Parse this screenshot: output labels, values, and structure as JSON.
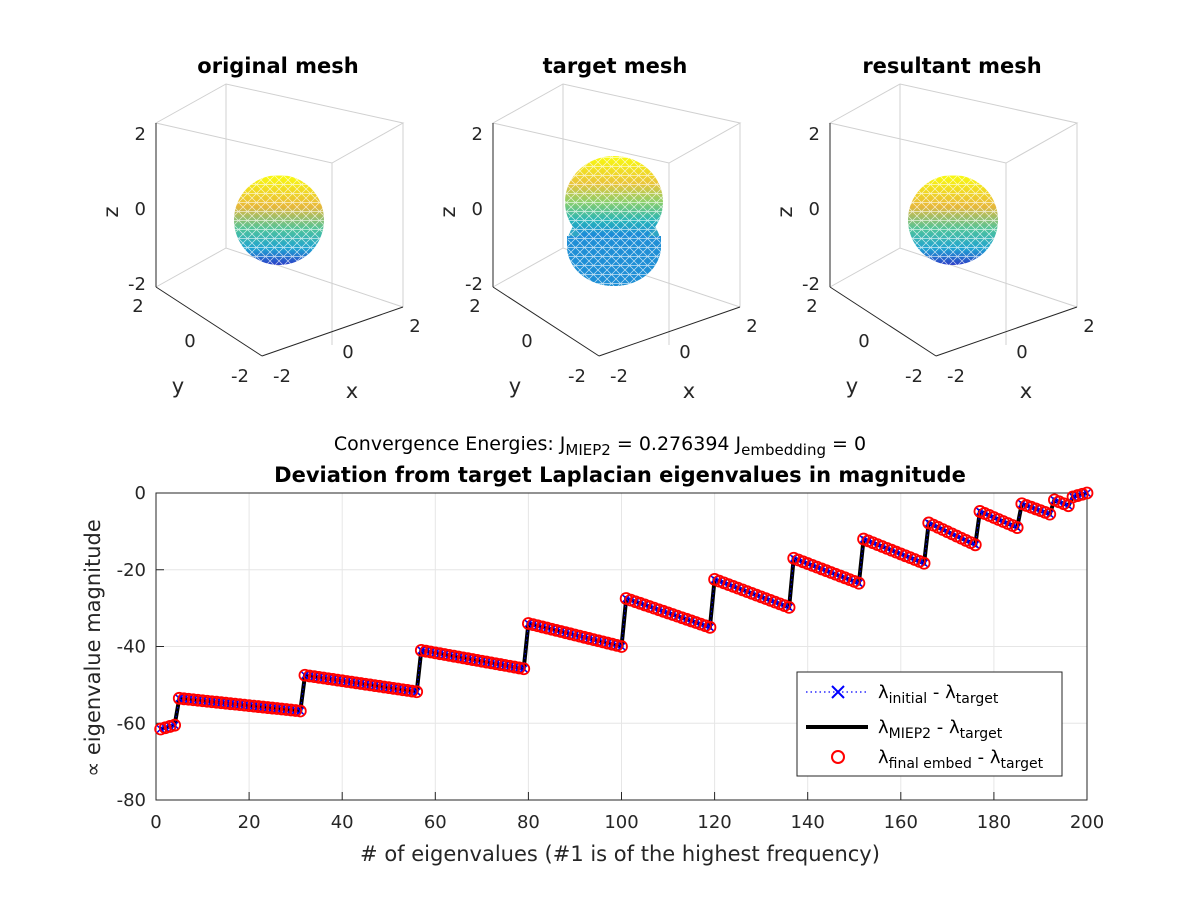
{
  "meshes": [
    {
      "title": "original mesh",
      "xlabel": "x",
      "ylabel": "y",
      "zlabel": "z",
      "ticks": [
        "-2",
        "0",
        "2"
      ],
      "shape": "sphere"
    },
    {
      "title": "target mesh",
      "xlabel": "x",
      "ylabel": "y",
      "zlabel": "z",
      "ticks": [
        "-2",
        "0",
        "2"
      ],
      "shape": "double-sphere"
    },
    {
      "title": "resultant mesh",
      "xlabel": "x",
      "ylabel": "y",
      "zlabel": "z",
      "ticks": [
        "-2",
        "0",
        "2"
      ],
      "shape": "sphere"
    }
  ],
  "chart_data": {
    "type": "line",
    "supertitle_prefix": "Convergence Energies: J",
    "supertitle_sub1": "MIEP2",
    "supertitle_mid": " = 0.276394     J",
    "supertitle_sub2": "embedding",
    "supertitle_end": " = 0",
    "title": "Deviation from target Laplacian eigenvalues in magnitude",
    "xlabel": "# of eigenvalues (#1 is of the highest frequency)",
    "ylabel": "∝ eigenvalue magnitude",
    "xlim": [
      0,
      200
    ],
    "ylim": [
      -80,
      0
    ],
    "xticks": [
      "0",
      "20",
      "40",
      "60",
      "80",
      "100",
      "120",
      "140",
      "160",
      "180",
      "200"
    ],
    "yticks": [
      "0",
      "-20",
      "-40",
      "-60",
      "-80"
    ],
    "grid": true,
    "legend_position": "bottom-right",
    "legend": [
      {
        "lambda": "λ",
        "sub": "initial",
        "sep": " - λ",
        "sub2": "target",
        "style": "blue dotted x"
      },
      {
        "lambda": "λ",
        "sub": "MIEP2",
        "sep": " - λ",
        "sub2": "target",
        "style": "black solid line"
      },
      {
        "lambda": "λ",
        "sub": "final embed",
        "sep": " - λ",
        "sub2": "target",
        "style": "red circle"
      }
    ],
    "segments": [
      {
        "x0": 1,
        "x1": 4,
        "y0": -61.5,
        "y1": -60.5
      },
      {
        "x0": 5,
        "x1": 31,
        "y0": -53.5,
        "y1": -56.8
      },
      {
        "x0": 32,
        "x1": 56,
        "y0": -47.5,
        "y1": -51.8
      },
      {
        "x0": 57,
        "x1": 79,
        "y0": -41.0,
        "y1": -45.8
      },
      {
        "x0": 80,
        "x1": 100,
        "y0": -34.0,
        "y1": -40.0
      },
      {
        "x0": 101,
        "x1": 119,
        "y0": -27.5,
        "y1": -35.0
      },
      {
        "x0": 120,
        "x1": 136,
        "y0": -22.5,
        "y1": -29.8
      },
      {
        "x0": 137,
        "x1": 151,
        "y0": -17.0,
        "y1": -23.5
      },
      {
        "x0": 152,
        "x1": 165,
        "y0": -12.0,
        "y1": -18.3
      },
      {
        "x0": 166,
        "x1": 176,
        "y0": -7.8,
        "y1": -13.5
      },
      {
        "x0": 177,
        "x1": 185,
        "y0": -4.8,
        "y1": -9.0
      },
      {
        "x0": 186,
        "x1": 192,
        "y0": -2.8,
        "y1": -5.5
      },
      {
        "x0": 193,
        "x1": 196,
        "y0": -1.8,
        "y1": -3.3
      },
      {
        "x0": 197,
        "x1": 200,
        "y0": -1.0,
        "y1": 0.0
      }
    ],
    "colors": {
      "initial": "#0000ff",
      "miep2": "#000000",
      "final": "#ff0000"
    }
  }
}
